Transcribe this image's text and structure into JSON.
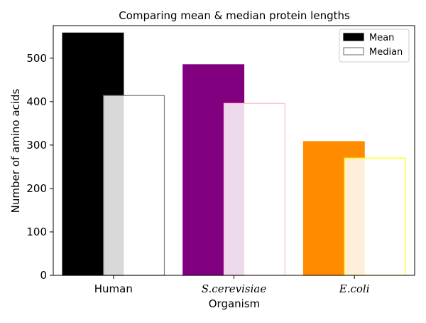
{
  "chart_data": {
    "type": "bar",
    "title": "Comparing mean & median protein lengths",
    "xlabel": "Organism",
    "ylabel": "Number of amino acids",
    "categories": [
      "Human",
      "S.cerevisiae",
      "E.coli"
    ],
    "category_italic": [
      false,
      true,
      true
    ],
    "ylim": [
      0,
      575
    ],
    "yticks": [
      0,
      100,
      200,
      300,
      400,
      500
    ],
    "grid": false,
    "legend_position": "top-right",
    "series": [
      {
        "name": "Mean",
        "values": [
          558,
          485,
          308
        ],
        "fill_colors": [
          "#000000",
          "#800080",
          "#ff8c00"
        ],
        "edge_colors": [
          "#000000",
          "#800080",
          "#ff8c00"
        ],
        "legend_fill": "#000000",
        "legend_edge": "#000000"
      },
      {
        "name": "Median",
        "values": [
          414,
          396,
          270
        ],
        "fill_colors": [
          "#ffffff",
          "#ffffff",
          "#ffffff"
        ],
        "edge_colors": [
          "#808080",
          "#ffc0cb",
          "#ffff00"
        ],
        "legend_fill": "#ffffff",
        "legend_edge": "#808080",
        "opacity": 0.85
      }
    ]
  }
}
